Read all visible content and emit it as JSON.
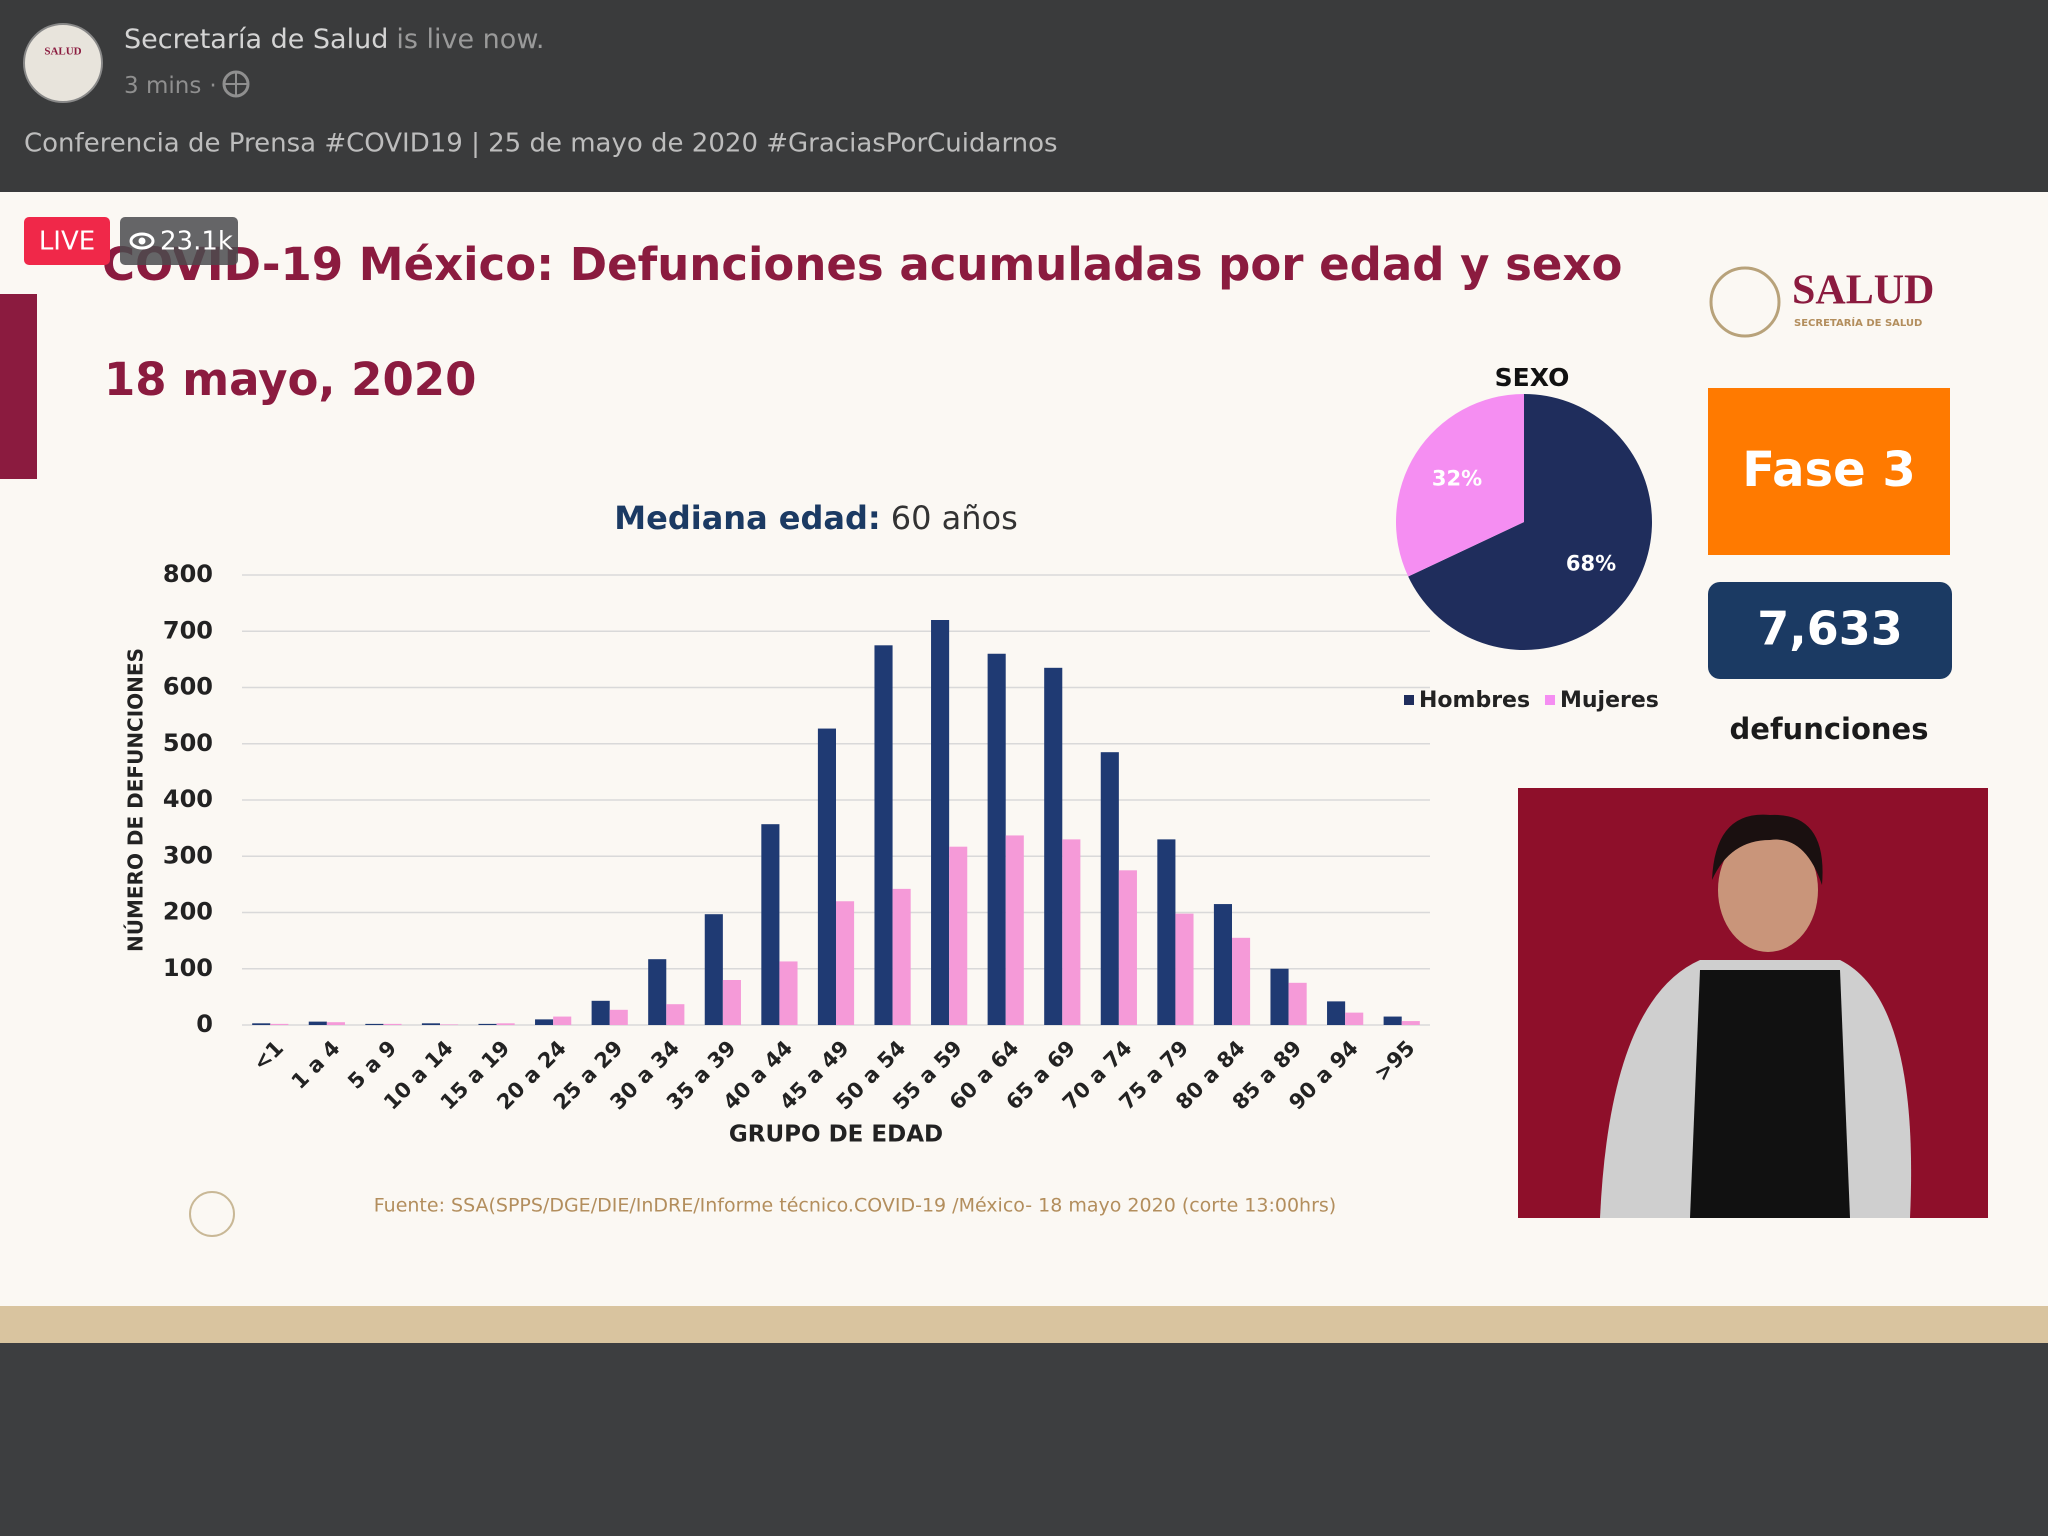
{
  "header": {
    "avatar_text": "SALUD",
    "page_name": "Secretaría de Salud",
    "status": "is live now.",
    "time": "3 mins",
    "separator": "·",
    "caption": "Conferencia de Prensa #COVID19 | 25 de mayo de 2020 #GraciasPorCuidarnos"
  },
  "video": {
    "live": "LIVE",
    "viewers": "23.1k"
  },
  "slide": {
    "title": "COVID-19 México: Defunciones acumuladas por edad y sexo",
    "date": "18 mayo, 2020",
    "logo": "SALUD",
    "logo_subtitle": "SECRETARÍA DE SALUD",
    "phase": "Fase 3",
    "total": "7,633",
    "total_label": "defunciones",
    "source": "Fuente: SSA(SPPS/DGE/DIE/InDRE/Informe técnico.COVID-19 /México- 18 mayo 2020 (corte 13:00hrs)"
  },
  "chart_data": [
    {
      "type": "bar",
      "annotations": [
        "Mediana edad:",
        "60 años"
      ],
      "xlabel": "GRUPO DE EDAD",
      "ylabel": "NÚMERO DE DEFUNCIONES",
      "categories": [
        "<1",
        "1 a 4",
        "5 a 9",
        "10 a 14",
        "15 a 19",
        "20 a 24",
        "25 a 29",
        "30 a 34",
        "35 a 39",
        "40 a 44",
        "45 a 49",
        "50 a 54",
        "55 a 59",
        "60 a 64",
        "65 a 69",
        "70 a 74",
        "75 a 79",
        "80 a 84",
        "85 a 89",
        "90 a 94",
        ">95"
      ],
      "series": [
        {
          "color": "#1f3a73",
          "values": [
            3,
            6,
            2,
            3,
            2,
            10,
            43,
            117,
            197,
            357,
            527,
            675,
            720,
            660,
            635,
            485,
            330,
            215,
            100,
            42,
            15
          ]
        },
        {
          "color": "#f59ad8",
          "values": [
            2,
            5,
            2,
            1,
            3,
            15,
            27,
            37,
            80,
            113,
            220,
            242,
            317,
            337,
            330,
            275,
            198,
            155,
            75,
            22,
            7
          ]
        }
      ],
      "ylim": [
        0,
        800
      ],
      "yticks": [
        0,
        100,
        200,
        300,
        400,
        500,
        600,
        700,
        800
      ],
      "grid": true
    },
    {
      "type": "pie",
      "title": "SEXO",
      "categories": [
        "Hombres",
        "Mujeres"
      ],
      "values": [
        68,
        32
      ],
      "value_labels": [
        "68%",
        "32%"
      ],
      "colors": [
        "#1f2d5c",
        "#f58ef2"
      ]
    }
  ]
}
